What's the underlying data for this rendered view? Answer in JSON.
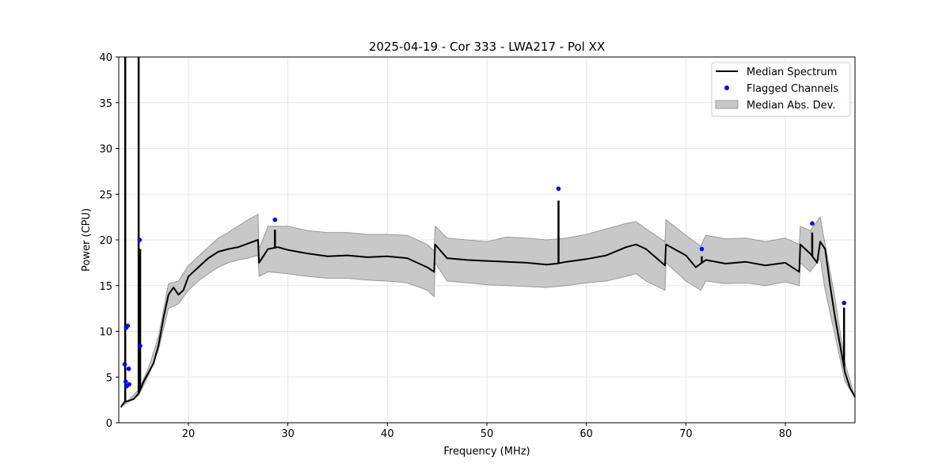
{
  "chart_data": {
    "type": "line",
    "title": "2025-04-19 - Cor 333 - LWA217 - Pol XX",
    "xlabel": "Frequency (MHz)",
    "ylabel": "Power (CPU)",
    "xlim": [
      13.0,
      87.0
    ],
    "ylim": [
      0,
      40
    ],
    "xticks": [
      20,
      30,
      40,
      50,
      60,
      70,
      80
    ],
    "yticks": [
      0,
      5,
      10,
      15,
      20,
      25,
      30,
      35,
      40
    ],
    "grid": true,
    "legend_position": "top-right",
    "series": [
      {
        "name": "Median Spectrum",
        "kind": "line",
        "color": "#000000",
        "x": [
          13.2,
          13.6,
          14.0,
          14.5,
          15.0,
          15.5,
          16.0,
          16.5,
          17.0,
          17.5,
          18.0,
          18.5,
          19.0,
          19.5,
          20.0,
          21.0,
          22.0,
          23.0,
          24.0,
          25.0,
          26.0,
          27.0,
          27.1,
          28.0,
          29.0,
          30.0,
          32.0,
          34.0,
          36.0,
          38.0,
          40.0,
          42.0,
          44.0,
          44.7,
          44.8,
          46.0,
          48.0,
          50.0,
          52.0,
          54.0,
          56.0,
          57.0,
          58.0,
          60.0,
          62.0,
          64.0,
          65.0,
          66.0,
          67.9,
          68.0,
          70.0,
          71.0,
          72.0,
          74.0,
          76.0,
          78.0,
          80.0,
          81.4,
          81.5,
          82.5,
          83.2,
          83.5,
          84.0,
          84.5,
          85.0,
          85.5,
          86.0,
          86.5,
          87.0
        ],
        "values": [
          1.7,
          2.3,
          2.4,
          2.6,
          3.2,
          4.5,
          5.5,
          6.5,
          8.5,
          11.5,
          14.0,
          14.8,
          14.0,
          14.5,
          16.0,
          17.0,
          18.0,
          18.7,
          19.0,
          19.2,
          19.6,
          20.0,
          17.5,
          19.0,
          19.2,
          18.9,
          18.5,
          18.2,
          18.3,
          18.1,
          18.2,
          18.0,
          17.0,
          16.5,
          19.5,
          18.0,
          17.8,
          17.7,
          17.6,
          17.5,
          17.3,
          17.4,
          17.6,
          17.9,
          18.3,
          19.2,
          19.5,
          19.0,
          17.2,
          19.5,
          18.3,
          17.0,
          17.8,
          17.4,
          17.6,
          17.2,
          17.5,
          16.5,
          19.5,
          18.5,
          17.5,
          19.8,
          19.0,
          15.0,
          11.5,
          8.5,
          5.5,
          3.8,
          2.8
        ]
      },
      {
        "name": "Flagged Channels",
        "kind": "scatter",
        "color": "#0000ff",
        "x": [
          13.6,
          13.7,
          13.8,
          13.9,
          14.0,
          13.75,
          14.05,
          15.1,
          15.15,
          28.7,
          57.2,
          71.6,
          82.7,
          85.9
        ],
        "values": [
          6.4,
          4.5,
          4.0,
          10.6,
          5.9,
          10.4,
          4.2,
          20.0,
          8.4,
          22.2,
          25.6,
          19.0,
          21.8,
          13.1
        ]
      },
      {
        "name": "Median Abs. Dev.",
        "kind": "band",
        "color": "#c8c8c8",
        "x": [
          13.2,
          14.0,
          15.0,
          16.0,
          17.0,
          18.0,
          19.0,
          20.0,
          21.0,
          22.0,
          23.0,
          24.0,
          25.0,
          26.0,
          27.0,
          27.1,
          28.0,
          30.0,
          32.0,
          34.0,
          36.0,
          38.0,
          40.0,
          42.0,
          44.0,
          44.7,
          44.8,
          46.0,
          48.0,
          50.0,
          52.0,
          54.0,
          56.0,
          58.0,
          60.0,
          62.0,
          64.0,
          65.0,
          66.0,
          67.9,
          68.0,
          70.0,
          71.5,
          72.0,
          74.0,
          76.0,
          78.0,
          80.0,
          81.4,
          81.5,
          82.5,
          83.5,
          84.0,
          85.0,
          86.0,
          87.0
        ],
        "lower": [
          1.7,
          2.3,
          3.0,
          5.2,
          8.0,
          12.5,
          13.0,
          14.5,
          15.5,
          16.3,
          17.0,
          17.5,
          17.8,
          18.0,
          18.3,
          16.0,
          16.5,
          16.3,
          16.0,
          15.8,
          15.8,
          15.6,
          15.5,
          15.3,
          14.5,
          13.8,
          17.5,
          15.5,
          15.3,
          15.1,
          15.0,
          14.9,
          14.8,
          15.0,
          15.3,
          15.5,
          16.0,
          16.3,
          15.5,
          14.5,
          17.5,
          15.5,
          14.5,
          15.5,
          15.2,
          15.3,
          15.0,
          15.4,
          15.0,
          17.5,
          16.5,
          18.0,
          14.5,
          9.5,
          4.5,
          2.8
        ],
        "upper": [
          1.7,
          2.5,
          3.6,
          6.0,
          9.5,
          15.2,
          15.5,
          17.2,
          18.2,
          19.2,
          20.2,
          20.8,
          21.5,
          22.2,
          22.8,
          19.0,
          21.5,
          21.5,
          21.0,
          20.8,
          20.8,
          20.6,
          20.6,
          20.5,
          19.5,
          18.8,
          21.5,
          20.2,
          20.0,
          19.8,
          20.3,
          20.2,
          20.0,
          20.2,
          20.6,
          21.2,
          21.8,
          22.0,
          21.2,
          19.8,
          22.2,
          20.5,
          19.3,
          20.5,
          20.1,
          20.2,
          19.8,
          20.2,
          19.5,
          21.5,
          21.0,
          22.5,
          19.5,
          13.5,
          6.5,
          2.8
        ]
      }
    ],
    "spikes": [
      {
        "x": 13.65,
        "peak": 40
      },
      {
        "x": 15.0,
        "peak": 40
      },
      {
        "x": 15.15,
        "peak": 19.0
      },
      {
        "x": 28.7,
        "peak": 21.1
      },
      {
        "x": 57.2,
        "peak": 24.3
      },
      {
        "x": 71.6,
        "peak": 18.2
      },
      {
        "x": 82.7,
        "peak": 20.8
      },
      {
        "x": 85.9,
        "peak": 12.6
      }
    ],
    "legend": [
      "Median Spectrum",
      "Flagged Channels",
      "Median Abs. Dev."
    ]
  }
}
